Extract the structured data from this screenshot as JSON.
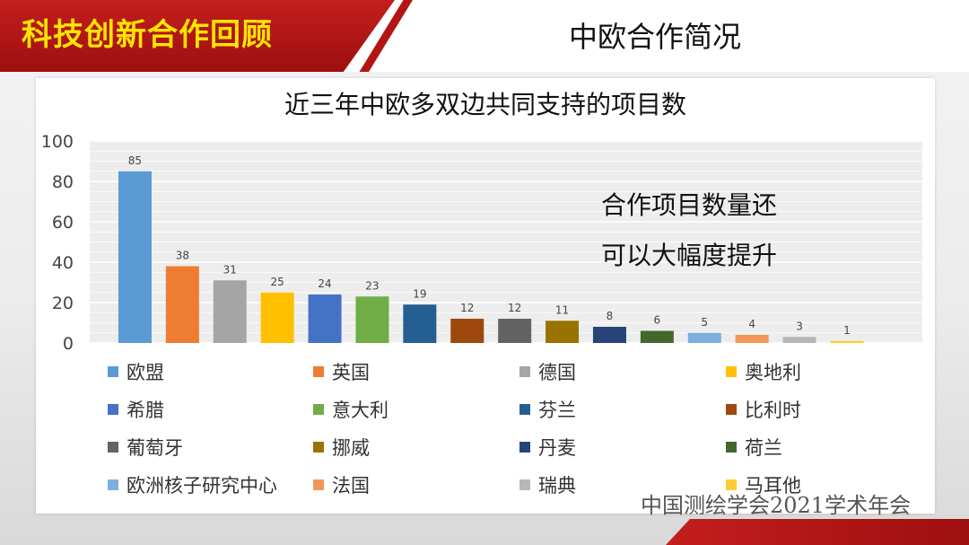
{
  "header": {
    "left_title": "科技创新合作回顾",
    "right_title": "中欧合作简况"
  },
  "callout": {
    "line1": "合作项目数量还",
    "line2": "可以大幅度提升"
  },
  "watermark": "中国测绘学会2021学术年会",
  "chart_data": {
    "type": "bar",
    "title": "近三年中欧多双边共同支持的项目数",
    "xlabel": "",
    "ylabel": "",
    "ylim": [
      0,
      100
    ],
    "yticks": [
      0,
      20,
      40,
      60,
      80,
      100
    ],
    "grid": true,
    "legend": "bottom",
    "categories": [
      "欧盟",
      "英国",
      "德国",
      "奥地利",
      "希腊",
      "意大利",
      "芬兰",
      "比利时",
      "葡萄牙",
      "挪威",
      "丹麦",
      "荷兰",
      "欧洲核子研究中心",
      "法国",
      "瑞典",
      "马耳他"
    ],
    "values": [
      85,
      38,
      31,
      25,
      24,
      23,
      19,
      12,
      12,
      11,
      8,
      6,
      5,
      4,
      3,
      1
    ],
    "colors": [
      "#5b9bd5",
      "#ed7d31",
      "#a5a5a5",
      "#ffc000",
      "#4472c4",
      "#70ad47",
      "#255e91",
      "#9e480e",
      "#636363",
      "#997300",
      "#264478",
      "#43682b",
      "#7cafdd",
      "#f1975a",
      "#b7b7b7",
      "#ffcd33"
    ]
  }
}
